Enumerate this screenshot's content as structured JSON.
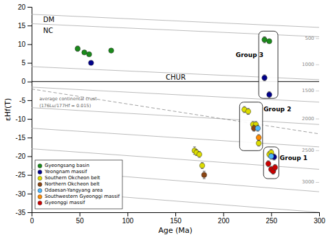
{
  "chart_data": {
    "type": "scatter",
    "xlabel": "Age (Ma)",
    "ylabel": "εHf(T)",
    "xlim": [
      0,
      300
    ],
    "ylim": [
      -35,
      20
    ],
    "xticks": [
      0,
      50,
      100,
      150,
      200,
      250,
      300
    ],
    "yticks": [
      -35,
      -30,
      -25,
      -20,
      -15,
      -10,
      -5,
      0,
      5,
      10,
      15,
      20
    ],
    "legend": "lower left",
    "series": [
      {
        "name": "Gyeongsang basin",
        "color": "#1a8a1a",
        "x": [
          48,
          55,
          60,
          83,
          243,
          248
        ],
        "values": [
          8.8,
          7.8,
          7.3,
          8.3,
          11.2,
          10.8
        ],
        "errors": [
          0.7,
          0.5,
          0.5,
          0.5,
          0.8,
          0.5
        ]
      },
      {
        "name": "Yeongnam massif",
        "color": "#00008B",
        "x": [
          62,
          243,
          248,
          250,
          253
        ],
        "values": [
          5.0,
          1.0,
          -3.5,
          -19.5,
          -20.2
        ],
        "errors": [
          0.5,
          0.8,
          0.8,
          0.8,
          0.8
        ]
      },
      {
        "name": "Southern Okcheon belt",
        "color": "#dddd00",
        "x": [
          170,
          172,
          175,
          178,
          222,
          226,
          231,
          234,
          237,
          248,
          250
        ],
        "values": [
          -18.5,
          -19.0,
          -19.5,
          -22.5,
          -7.5,
          -8.0,
          -11.5,
          -11.5,
          -16.5,
          -19.5,
          -19.0
        ],
        "errors": [
          1.0,
          0.8,
          0.8,
          0.8,
          0.8,
          0.8,
          0.8,
          0.8,
          0.8,
          0.8,
          0.8
        ]
      },
      {
        "name": "Northern Okcheon belt",
        "color": "#8B4513",
        "x": [
          180,
          232
        ],
        "values": [
          -25.0,
          -12.5
        ],
        "errors": [
          1.0,
          0.8
        ]
      },
      {
        "name": "Odaesan-Yangyang area",
        "color": "#4db8ff",
        "x": [
          236,
          250
        ],
        "values": [
          -12.5,
          -20.0
        ],
        "errors": [
          0.8,
          0.8
        ]
      },
      {
        "name": "Southwestern Gyeonggi massif",
        "color": "#FF8C00",
        "x": [
          237
        ],
        "values": [
          -15.0
        ],
        "errors": [
          0.8
        ]
      },
      {
        "name": "Gyeonggi massif",
        "color": "#CC0000",
        "x": [
          247,
          250,
          252,
          254
        ],
        "values": [
          -22.0,
          -23.5,
          -24.0,
          -23.0
        ],
        "errors": [
          0.8,
          0.8,
          0.8,
          0.8
        ]
      },
      {
        "type": "line",
        "color": "#aaaaaa",
        "line_style": "solid",
        "x": [
          0,
          300
        ],
        "values": [
          18.0,
          14.5
        ]
      },
      {
        "type": "line",
        "color": "#aaaaaa",
        "line_style": "solid",
        "x": [
          0,
          300
        ],
        "values": [
          15.5,
          12.0
        ]
      },
      {
        "type": "line",
        "color": "#aaaaaa",
        "line_style": "solid",
        "x": [
          0,
          300
        ],
        "values": [
          4.0,
          0.5
        ]
      },
      {
        "type": "line",
        "color": "#aaaaaa",
        "line_style": "solid",
        "x": [
          0,
          300
        ],
        "values": [
          -1.5,
          -5.5
        ]
      },
      {
        "type": "line",
        "color": "#aaaaaa",
        "line_style": "solid",
        "x": [
          0,
          300
        ],
        "values": [
          -7.0,
          -11.5
        ]
      },
      {
        "type": "line",
        "color": "#aaaaaa",
        "line_style": "solid",
        "x": [
          0,
          300
        ],
        "values": [
          -12.5,
          -17.5
        ]
      },
      {
        "type": "line",
        "color": "#aaaaaa",
        "line_style": "solid",
        "x": [
          0,
          300
        ],
        "values": [
          -18.0,
          -23.5
        ]
      },
      {
        "type": "line",
        "color": "#aaaaaa",
        "line_style": "solid",
        "x": [
          0,
          300
        ],
        "values": [
          -23.5,
          -29.5
        ]
      },
      {
        "type": "line",
        "color": "#aaaaaa",
        "line_style": "solid",
        "x": [
          0,
          300
        ],
        "values": [
          -29.0,
          -35.0
        ]
      },
      {
        "type": "line",
        "color": "#888888",
        "line_style": "dashed",
        "x": [
          0,
          300
        ],
        "values": [
          -2.0,
          -14.0
        ]
      },
      {
        "type": "line",
        "color": "black",
        "line_style": "solid",
        "x": [
          0,
          300
        ],
        "values": [
          0,
          0
        ]
      }
    ],
    "annotations": [
      {
        "text": "average continental crust",
        "x": 8,
        "y": -5.0,
        "color": "#666666"
      },
      {
        "text": "(176Lu/177Hf = 0.015)",
        "x": 8,
        "y": -6.8,
        "color": "#666666"
      },
      {
        "text": "DM",
        "x": 12,
        "y": 16.5
      },
      {
        "text": "NC",
        "x": 12,
        "y": 13.5
      },
      {
        "text": "CHUR",
        "x": 140,
        "y": 1.0
      }
    ],
    "side_labels": [
      {
        "text": "500",
        "x": 297,
        "y": 11.5,
        "color": "#888888"
      },
      {
        "text": "1000",
        "x": 297,
        "y": 4.5,
        "color": "#888888"
      },
      {
        "text": "1500",
        "x": 297,
        "y": -2.5,
        "color": "#888888"
      },
      {
        "text": "2000",
        "x": 297,
        "y": -10.0,
        "color": "#888888"
      },
      {
        "text": "2500",
        "x": 297,
        "y": -18.5,
        "color": "#888888"
      },
      {
        "text": "3000",
        "x": 297,
        "y": -27.0,
        "color": "#888888"
      }
    ],
    "boxes": [
      {
        "x0": 237,
        "y0": -4.5,
        "w": 20,
        "h": 18.0,
        "label": {
          "text": "Group 3",
          "x": 213,
          "y": 7.0
        }
      },
      {
        "x0": 217,
        "y0": -18.5,
        "w": 24,
        "h": 13.0,
        "label": {
          "text": "Group 2",
          "x": 242,
          "y": -7.5
        }
      },
      {
        "x0": 242,
        "y0": -26.0,
        "w": 16,
        "h": 8.5,
        "label": {
          "text": "Group 1",
          "x": 259,
          "y": -20.5
        }
      }
    ]
  }
}
